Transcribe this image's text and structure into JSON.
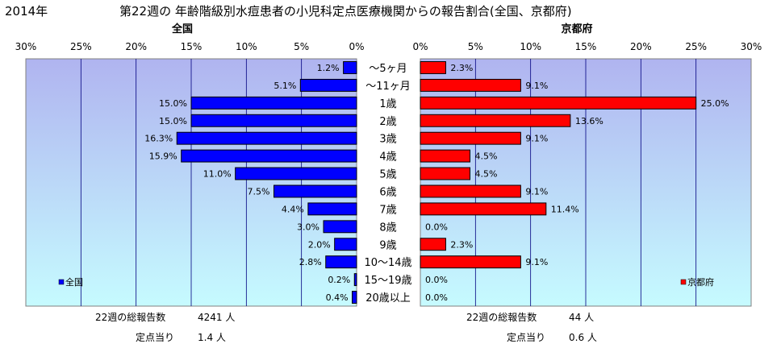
{
  "header": {
    "year": "2014年",
    "title": "第22週の  年齢階級別水痘患者の小児科定点医療機関からの報告割合(全国、京都府)"
  },
  "colors": {
    "zenkoku_bar": "#0000ff",
    "kyoto_bar": "#ff0000",
    "plot_top": "#b0b4f0",
    "plot_bottom": "#c6fbff",
    "grid": "#000080"
  },
  "chart_data": [
    {
      "type": "bar",
      "orientation": "horizontal",
      "title": "全国",
      "legend": "全国",
      "legend_position": "bottom-left",
      "xlim": [
        0,
        30
      ],
      "x_reversed": true,
      "tick_values": [
        30,
        25,
        20,
        15,
        10,
        5,
        0
      ],
      "tick_labels": [
        "30%",
        "25%",
        "20%",
        "15%",
        "10%",
        "5%",
        "0%"
      ],
      "grid": true,
      "categories": [
        "〜5ヶ月",
        "〜11ヶ月",
        "1歳",
        "2歳",
        "3歳",
        "4歳",
        "5歳",
        "6歳",
        "7歳",
        "8歳",
        "9歳",
        "10〜14歳",
        "15〜19歳",
        "20歳以上"
      ],
      "series": [
        {
          "name": "全国",
          "values": [
            1.2,
            5.1,
            15.0,
            15.0,
            16.3,
            15.9,
            11.0,
            7.5,
            4.4,
            3.0,
            2.0,
            2.8,
            0.2,
            0.4
          ]
        }
      ],
      "value_labels": [
        "1.2%",
        "5.1%",
        "15.0%",
        "15.0%",
        "16.3%",
        "15.9%",
        "11.0%",
        "7.5%",
        "4.4%",
        "3.0%",
        "2.0%",
        "2.8%",
        "0.2%",
        "0.4%"
      ]
    },
    {
      "type": "bar",
      "orientation": "horizontal",
      "title": "京都府",
      "legend": "京都府",
      "legend_position": "bottom-right",
      "xlim": [
        0,
        30
      ],
      "tick_values": [
        0,
        5,
        10,
        15,
        20,
        25,
        30
      ],
      "tick_labels": [
        "0%",
        "5%",
        "10%",
        "15%",
        "20%",
        "25%",
        "30%"
      ],
      "grid": true,
      "categories": [
        "〜5ヶ月",
        "〜11ヶ月",
        "1歳",
        "2歳",
        "3歳",
        "4歳",
        "5歳",
        "6歳",
        "7歳",
        "8歳",
        "9歳",
        "10〜14歳",
        "15〜19歳",
        "20歳以上"
      ],
      "series": [
        {
          "name": "京都府",
          "values": [
            2.3,
            9.1,
            25.0,
            13.6,
            9.1,
            4.5,
            4.5,
            9.1,
            11.4,
            0.0,
            2.3,
            9.1,
            0.0,
            0.0
          ]
        }
      ],
      "value_labels": [
        "2.3%",
        "9.1%",
        "25.0%",
        "13.6%",
        "9.1%",
        "4.5%",
        "4.5%",
        "9.1%",
        "11.4%",
        "0.0%",
        "2.3%",
        "9.1%",
        "0.0%",
        "0.0%"
      ]
    }
  ],
  "footer": {
    "zenkoku": {
      "total_label": "22週の総報告数",
      "total_value": "4241 人",
      "per_site_label": "定点当り",
      "per_site_value": "1.4 人"
    },
    "kyoto": {
      "total_label": "22週の総報告数",
      "total_value": "44 人",
      "per_site_label": "定点当り",
      "per_site_value": "0.6 人"
    }
  }
}
